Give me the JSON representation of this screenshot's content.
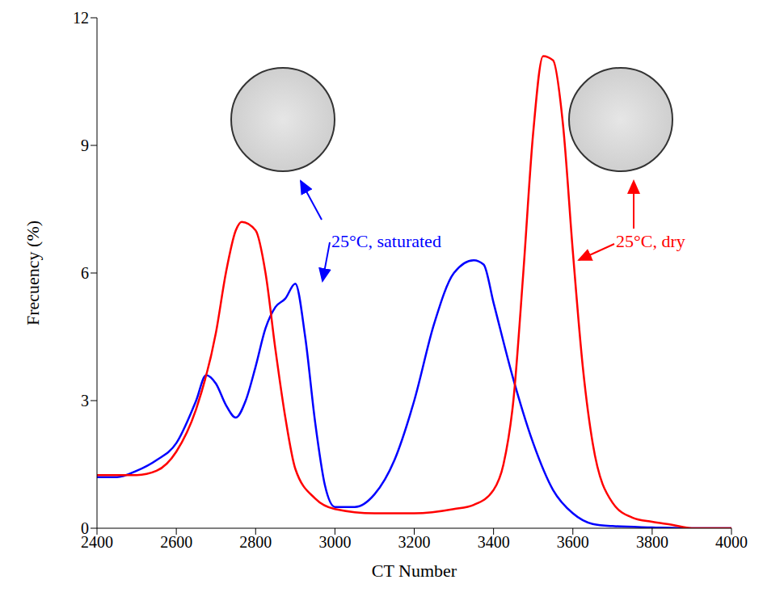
{
  "chart_data": {
    "type": "line",
    "x_label": "CT Number",
    "y_label": "Frecuency (%)",
    "xlim": [
      2400,
      4000
    ],
    "xticks": [
      2400,
      2600,
      2800,
      3000,
      3200,
      3400,
      3600,
      3800,
      4000
    ],
    "ylim": [
      0,
      12
    ],
    "yticks": [
      0,
      3,
      6,
      9,
      12
    ],
    "grid": false,
    "series": [
      {
        "name": "25°C, saturated",
        "color": "#0000ff",
        "x": [
          2400,
          2450,
          2500,
          2550,
          2600,
          2650,
          2675,
          2700,
          2725,
          2750,
          2775,
          2800,
          2825,
          2850,
          2875,
          2900,
          2925,
          2950,
          2975,
          3000,
          3050,
          3100,
          3150,
          3200,
          3250,
          3300,
          3350,
          3375,
          3400,
          3450,
          3500,
          3550,
          3600,
          3650,
          3700,
          3800,
          3900,
          4000
        ],
        "values": [
          1.2,
          1.2,
          1.35,
          1.6,
          2.0,
          3.0,
          3.6,
          3.4,
          2.9,
          2.6,
          3.0,
          3.8,
          4.7,
          5.2,
          5.4,
          5.75,
          4.5,
          2.5,
          1.0,
          0.5,
          0.5,
          0.8,
          1.6,
          3.0,
          4.8,
          6.0,
          6.3,
          6.2,
          5.3,
          3.5,
          2.0,
          0.9,
          0.35,
          0.1,
          0.05,
          0.02,
          0,
          0
        ]
      },
      {
        "name": "25°C, dry",
        "color": "#ff0000",
        "x": [
          2400,
          2500,
          2550,
          2600,
          2650,
          2700,
          2725,
          2750,
          2765,
          2800,
          2825,
          2850,
          2875,
          2900,
          2950,
          3000,
          3100,
          3200,
          3300,
          3350,
          3400,
          3425,
          3450,
          3475,
          3500,
          3525,
          3550,
          3575,
          3600,
          3625,
          3650,
          3700,
          3750,
          3800,
          3850,
          3900,
          4000
        ],
        "values": [
          1.25,
          1.25,
          1.35,
          1.8,
          2.8,
          4.6,
          6.0,
          7.0,
          7.2,
          7.0,
          6.0,
          4.2,
          2.6,
          1.4,
          0.7,
          0.45,
          0.35,
          0.35,
          0.45,
          0.55,
          0.9,
          1.5,
          3.0,
          6.0,
          9.3,
          11.1,
          11.0,
          9.5,
          6.5,
          3.8,
          2.0,
          0.6,
          0.25,
          0.15,
          0.08,
          0,
          0
        ]
      }
    ]
  }
}
